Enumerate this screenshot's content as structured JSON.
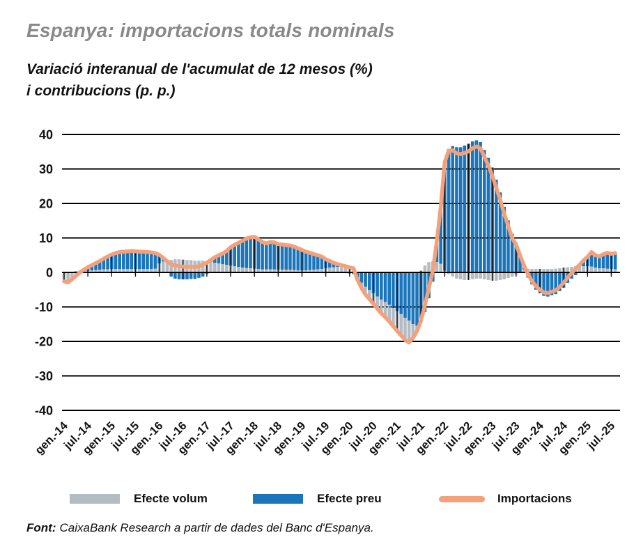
{
  "header": {
    "title": "Espanya: importacions totals nominals",
    "subtitle_line1": "Variació interanual de l'acumulat de 12 mesos (%)",
    "subtitle_line2": "i contribucions (p. p.)"
  },
  "legend": {
    "items": [
      {
        "label": "Efecte volum",
        "color": "#b3bcc3",
        "type": "bar"
      },
      {
        "label": "Efecte preu",
        "color": "#1b75bb",
        "type": "bar"
      },
      {
        "label": "Importacions",
        "color": "#f3a07b",
        "type": "line"
      }
    ]
  },
  "source": {
    "prefix": "Font:",
    "text": "CaixaBank Research a partir de dades del Banc d'Espanya."
  },
  "chart_data": {
    "type": "bar",
    "subtype": "stacked-bars-with-line",
    "ylim": [
      -40,
      40
    ],
    "y_ticks": [
      40,
      30,
      20,
      10,
      0,
      -10,
      -20,
      -30,
      -40
    ],
    "grid": "horizontal-solid-dotted-over-bars",
    "legend_position": "bottom",
    "x_start": "gen.-14",
    "x_end": "ago.-25",
    "x_tick_every_months": 6,
    "x_tick_labels": [
      "gen.-14",
      "jul.-14",
      "gen.-15",
      "jul.-15",
      "gen.-16",
      "jul.-16",
      "gen.-17",
      "jul.-17",
      "gen.-18",
      "jul.-18",
      "gen.-19",
      "jul.-19",
      "gen.-20",
      "jul.-20",
      "gen.-21",
      "jul.-21",
      "gen.-22",
      "jul.-22",
      "gen.-23",
      "jul.-23",
      "gen.-24",
      "jul.-24",
      "gen.-25",
      "jul.-25"
    ],
    "series": [
      {
        "name": "Efecte volum",
        "type": "bar",
        "color": "#b3bcc3",
        "values": [
          -2.8,
          -3.0,
          -2.2,
          -1.3,
          -0.5,
          0.3,
          0.5,
          0.6,
          0.7,
          0.8,
          0.9,
          0.9,
          1.0,
          1.0,
          1.0,
          1.0,
          1.0,
          1.0,
          1.0,
          1.0,
          1.0,
          1.0,
          1.0,
          1.1,
          2.6,
          3.2,
          3.4,
          3.6,
          3.8,
          3.8,
          3.7,
          3.6,
          3.6,
          3.4,
          3.4,
          3.4,
          3.2,
          3.0,
          2.8,
          2.6,
          2.4,
          2.2,
          2.0,
          1.8,
          1.6,
          1.4,
          1.3,
          1.2,
          1.1,
          1.0,
          0.9,
          0.9,
          0.9,
          0.9,
          0.8,
          0.8,
          0.8,
          0.8,
          0.7,
          0.6,
          0.6,
          0.6,
          0.7,
          0.8,
          0.9,
          1.0,
          1.2,
          1.4,
          1.5,
          1.6,
          1.7,
          1.8,
          1.8,
          1.7,
          -0.7,
          -1.5,
          -2.2,
          -2.6,
          -3.1,
          -3.5,
          -4.0,
          -4.4,
          -4.8,
          -5.3,
          -5.8,
          -6.2,
          -6.4,
          -6.3,
          -4.0,
          -1.5,
          0.5,
          2.0,
          3.0,
          3.2,
          3.0,
          2.5,
          0.5,
          -0.5,
          -1.2,
          -1.8,
          -2.0,
          -2.2,
          -2.2,
          -2.0,
          -1.8,
          -1.8,
          -2.0,
          -2.2,
          -2.4,
          -2.4,
          -2.2,
          -2.0,
          -1.6,
          -1.2,
          -0.6,
          0.2,
          0.8,
          1.0,
          1.0,
          1.0,
          1.0,
          1.0,
          1.0,
          1.0,
          1.1,
          1.2,
          1.4,
          1.5,
          1.6,
          1.8,
          1.8,
          1.8,
          1.8,
          1.7,
          1.4,
          1.2,
          1.2,
          1.1,
          1.0,
          0.9
        ]
      },
      {
        "name": "Efecte preu",
        "type": "bar",
        "color": "#1b75bb",
        "values": [
          0.2,
          0.1,
          0.2,
          0.3,
          0.5,
          0.5,
          1.0,
          1.5,
          2.0,
          2.5,
          3.1,
          3.7,
          4.2,
          4.6,
          4.9,
          5.0,
          5.1,
          5.2,
          5.1,
          5.0,
          5.0,
          4.9,
          4.8,
          4.5,
          2.5,
          1.0,
          -0.2,
          -1.2,
          -1.8,
          -2.0,
          -2.0,
          -2.0,
          -1.9,
          -1.9,
          -1.6,
          -1.2,
          -0.4,
          0.6,
          1.6,
          2.4,
          3.1,
          4.0,
          5.3,
          6.2,
          7.0,
          7.8,
          8.5,
          9.0,
          9.2,
          8.6,
          7.9,
          7.5,
          7.9,
          7.8,
          7.4,
          7.3,
          7.1,
          7.0,
          6.8,
          6.4,
          5.9,
          5.4,
          5.0,
          4.5,
          4.1,
          3.6,
          2.6,
          1.9,
          1.3,
          0.8,
          0.4,
          0.0,
          -0.3,
          -0.5,
          -1.5,
          -3.0,
          -4.2,
          -5.1,
          -6.0,
          -7.0,
          -7.9,
          -8.6,
          -9.4,
          -10.3,
          -11.2,
          -12.1,
          -13.2,
          -14.0,
          -15.0,
          -15.5,
          -14.5,
          -11.5,
          -7.5,
          -2.7,
          6.0,
          16.5,
          31.5,
          35.8,
          36.6,
          36.3,
          36.3,
          36.8,
          37.3,
          38.0,
          38.3,
          37.8,
          35.5,
          33.2,
          30.4,
          26.9,
          23.2,
          19.0,
          15.1,
          11.2,
          8.6,
          4.8,
          1.2,
          -1.5,
          -3.5,
          -5.0,
          -6.0,
          -6.8,
          -7.0,
          -6.6,
          -6.3,
          -5.4,
          -4.4,
          -3.0,
          -1.8,
          -0.8,
          0.4,
          1.7,
          2.7,
          4.2,
          3.6,
          3.4,
          4.1,
          4.6,
          4.4,
          4.7
        ]
      },
      {
        "name": "Importacions",
        "type": "line",
        "color": "#f3a07b",
        "values": [
          -2.6,
          -2.9,
          -2.0,
          -1.0,
          0.0,
          0.8,
          1.5,
          2.1,
          2.7,
          3.3,
          4.0,
          4.6,
          5.2,
          5.6,
          5.9,
          6.0,
          6.1,
          6.2,
          6.1,
          6.0,
          6.0,
          5.9,
          5.8,
          5.6,
          5.1,
          4.2,
          3.2,
          2.4,
          2.0,
          1.8,
          1.7,
          1.6,
          1.7,
          1.5,
          1.8,
          2.2,
          2.8,
          3.6,
          4.4,
          5.0,
          5.5,
          6.2,
          7.3,
          8.0,
          8.6,
          9.2,
          9.8,
          10.2,
          10.3,
          9.6,
          8.8,
          8.4,
          8.8,
          8.7,
          8.2,
          8.1,
          7.9,
          7.8,
          7.5,
          7.0,
          6.5,
          6.0,
          5.7,
          5.3,
          5.0,
          4.6,
          3.8,
          3.3,
          2.8,
          2.4,
          2.1,
          1.8,
          1.5,
          1.2,
          -2.2,
          -4.5,
          -6.4,
          -7.7,
          -9.1,
          -10.5,
          -11.9,
          -13.0,
          -14.2,
          -15.6,
          -17.0,
          -18.3,
          -19.6,
          -20.3,
          -19.0,
          -17.0,
          -14.0,
          -9.5,
          -4.5,
          0.5,
          9.0,
          19.0,
          32.0,
          35.3,
          35.4,
          34.5,
          34.3,
          34.6,
          35.1,
          36.0,
          36.5,
          36.0,
          33.5,
          31.0,
          28.0,
          24.5,
          21.0,
          17.0,
          13.5,
          10.0,
          8.0,
          5.0,
          2.0,
          -0.5,
          -2.5,
          -4.0,
          -5.0,
          -5.8,
          -6.0,
          -5.6,
          -5.2,
          -4.2,
          -3.0,
          -1.5,
          -0.2,
          1.0,
          2.2,
          3.5,
          4.5,
          5.9,
          5.0,
          4.6,
          5.3,
          5.7,
          5.4,
          5.6
        ]
      }
    ]
  }
}
